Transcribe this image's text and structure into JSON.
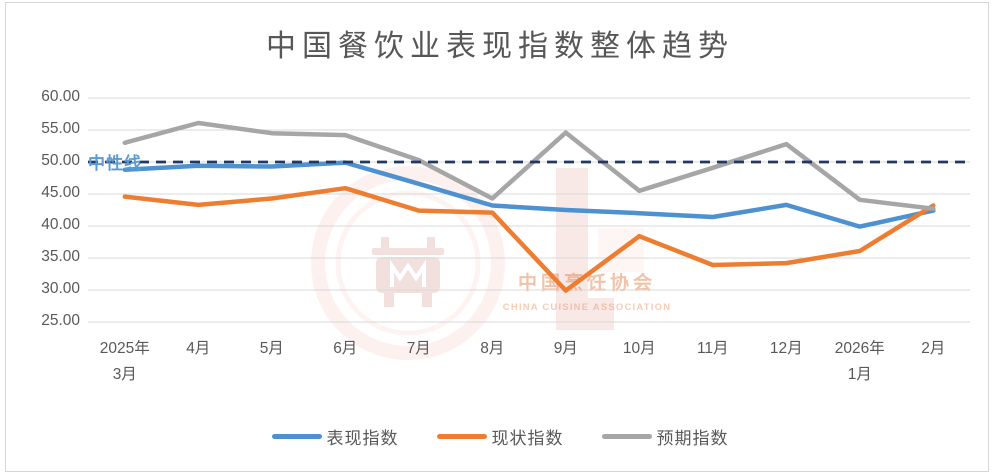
{
  "chart_data": {
    "type": "line",
    "title": "中国餐饮业表现指数整体趋势",
    "categories": [
      [
        "2025年",
        "3月"
      ],
      [
        "4月"
      ],
      [
        "5月"
      ],
      [
        "6月"
      ],
      [
        "7月"
      ],
      [
        "8月"
      ],
      [
        "9月"
      ],
      [
        "10月"
      ],
      [
        "11月"
      ],
      [
        "12月"
      ],
      [
        "2026年",
        "1月"
      ],
      [
        "2月"
      ]
    ],
    "series": [
      {
        "name": "表现指数",
        "slug": "performance-index",
        "color": "#4E91D0",
        "values": [
          48.8,
          49.4,
          49.3,
          49.9,
          46.6,
          43.2,
          42.5,
          42.0,
          41.4,
          43.3,
          39.9,
          42.4
        ]
      },
      {
        "name": "现状指数",
        "slug": "current-index",
        "color": "#ED7D31",
        "values": [
          44.6,
          43.3,
          44.3,
          45.9,
          42.4,
          42.1,
          29.9,
          38.4,
          33.9,
          34.2,
          36.1,
          43.2
        ]
      },
      {
        "name": "预期指数",
        "slug": "expectation-index",
        "color": "#A6A6A6",
        "values": [
          53.0,
          56.1,
          54.5,
          54.2,
          50.3,
          44.3,
          54.6,
          45.5,
          49.1,
          52.8,
          44.1,
          42.7
        ]
      }
    ],
    "reference_line": {
      "label": "中性线",
      "value": 50,
      "color": "#1F3864",
      "label_color": "#5B9BD5"
    },
    "ylim": [
      25,
      60
    ],
    "ytick_step": 5,
    "grid": true,
    "gridline_color": "#D9D9D9",
    "axis_text_color": "#595959",
    "legend_position": "bottom"
  },
  "watermark": {
    "text_cn": "中国烹饪协会",
    "text_en": "CHINA CUISINE ASSOCIATION"
  }
}
